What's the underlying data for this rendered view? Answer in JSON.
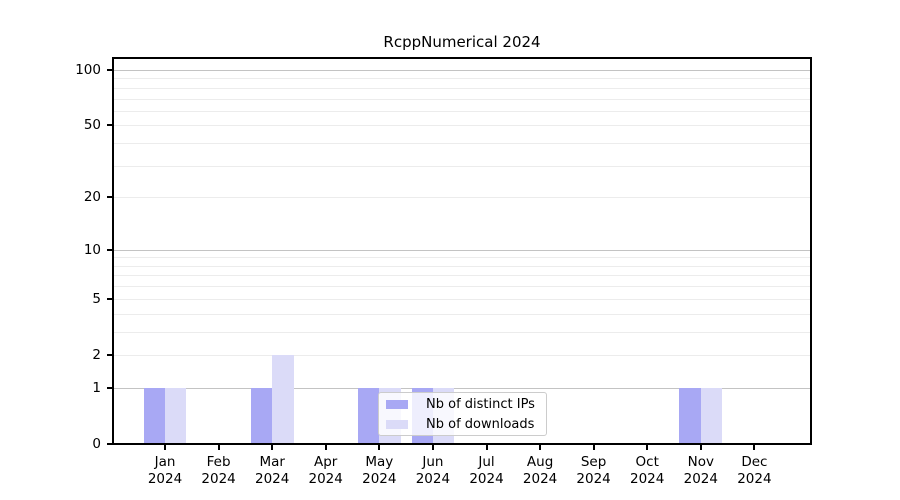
{
  "chart_data": {
    "type": "bar",
    "title": "RcppNumerical 2024",
    "categories": [
      "Jan",
      "Feb",
      "Mar",
      "Apr",
      "May",
      "Jun",
      "Jul",
      "Aug",
      "Sep",
      "Oct",
      "Nov",
      "Dec"
    ],
    "year_label": "2024",
    "series": [
      {
        "name": "Nb of distinct IPs",
        "color": "#a8a8f4",
        "values": [
          1,
          0,
          1,
          0,
          1,
          1,
          0,
          0,
          0,
          0,
          1,
          0
        ]
      },
      {
        "name": "Nb of downloads",
        "color": "#dbdbf8",
        "values": [
          1,
          0,
          2,
          0,
          1,
          1,
          0,
          0,
          0,
          0,
          1,
          0
        ]
      }
    ],
    "yscale": "log1p",
    "ylim": [
      0,
      116
    ],
    "ytick_values": [
      0,
      1,
      2,
      5,
      10,
      20,
      50,
      100
    ],
    "ytick_labels": [
      "0",
      "1",
      "2",
      "5",
      "10",
      "20",
      "50",
      "100"
    ],
    "major_gridlines": [
      1,
      10,
      100
    ],
    "minor_gridlines": [
      2,
      3,
      4,
      5,
      6,
      7,
      8,
      9,
      20,
      30,
      40,
      50,
      60,
      70,
      80,
      90
    ],
    "grid": true,
    "legend_position": "inside-lower-center"
  },
  "colors": {
    "grid_major": "#c3c3c3",
    "grid_minor": "#ececec",
    "spine": "#000000",
    "legend_border": "#cccccc",
    "background": "#ffffff"
  }
}
